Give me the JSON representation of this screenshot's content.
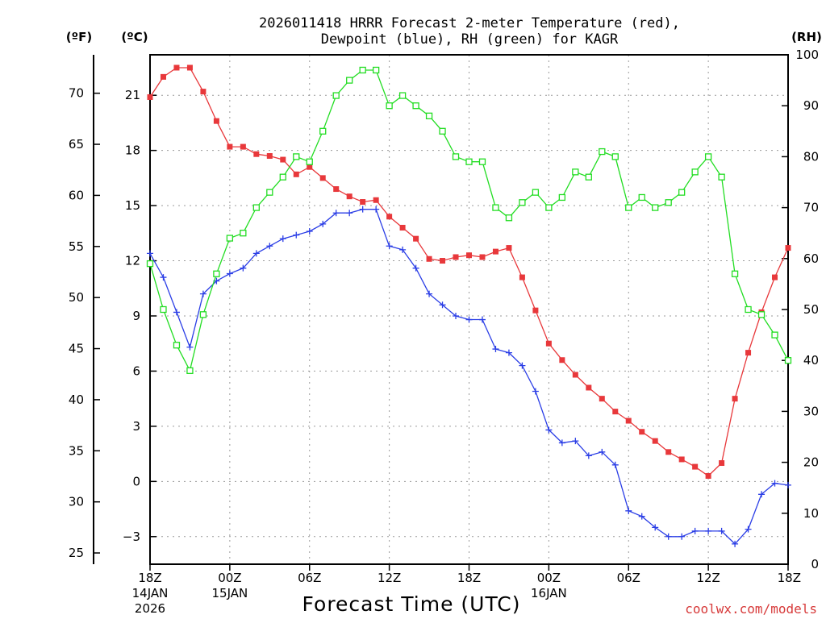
{
  "chart_data": {
    "type": "line",
    "title_line1": "2026011418 HRRR Forecast 2-meter Temperature (red),",
    "title_line2": "Dewpoint (blue), RH (green) for KAGR",
    "xlabel": "Forecast Time (UTC)",
    "credit": "coolwx.com/models",
    "units": {
      "left_f": "(ºF)",
      "left_c": "(ºC)",
      "right": "(RH)"
    },
    "x_range_hours": [
      0,
      48
    ],
    "celsius_range": [
      -4.5,
      23.2
    ],
    "rh_range": [
      0,
      100
    ],
    "ticks_f": [
      25,
      30,
      35,
      40,
      45,
      50,
      55,
      60,
      65,
      70
    ],
    "ticks_c": [
      -3,
      0,
      3,
      6,
      9,
      12,
      15,
      18,
      21
    ],
    "ticks_rh": [
      0,
      10,
      20,
      30,
      40,
      50,
      60,
      70,
      80,
      90,
      100
    ],
    "x_ticks": [
      {
        "hour": 0,
        "label": "18Z",
        "date1": "14JAN",
        "date2": "2026"
      },
      {
        "hour": 6,
        "label": "00Z",
        "date1": "15JAN",
        "date2": ""
      },
      {
        "hour": 12,
        "label": "06Z",
        "date1": "",
        "date2": ""
      },
      {
        "hour": 18,
        "label": "12Z",
        "date1": "",
        "date2": ""
      },
      {
        "hour": 24,
        "label": "18Z",
        "date1": "",
        "date2": ""
      },
      {
        "hour": 30,
        "label": "00Z",
        "date1": "16JAN",
        "date2": ""
      },
      {
        "hour": 36,
        "label": "06Z",
        "date1": "",
        "date2": ""
      },
      {
        "hour": 42,
        "label": "12Z",
        "date1": "",
        "date2": ""
      },
      {
        "hour": 48,
        "label": "18Z",
        "date1": "",
        "date2": ""
      }
    ],
    "series": [
      {
        "name": "2-meter Temperature",
        "unit": "C",
        "color": "#e8383b",
        "marker": "filled-square",
        "values": [
          20.9,
          22.0,
          22.5,
          22.5,
          21.2,
          19.6,
          18.2,
          18.2,
          17.8,
          17.7,
          17.5,
          16.7,
          17.1,
          16.5,
          15.9,
          15.5,
          15.2,
          15.3,
          14.4,
          13.8,
          13.2,
          12.1,
          12.0,
          12.2,
          12.3,
          12.2,
          12.5,
          12.7,
          11.1,
          9.3,
          7.5,
          6.6,
          5.8,
          5.1,
          4.5,
          3.8,
          3.3,
          2.7,
          2.2,
          1.6,
          1.2,
          0.8,
          0.3,
          1.0,
          4.5,
          7.0,
          9.2,
          11.1,
          12.7
        ]
      },
      {
        "name": "Dewpoint",
        "unit": "C",
        "color": "#2b3ee6",
        "marker": "plus",
        "values": [
          12.4,
          11.1,
          9.2,
          7.3,
          10.2,
          10.9,
          11.3,
          11.6,
          12.4,
          12.8,
          13.2,
          13.4,
          13.6,
          14.0,
          14.6,
          14.6,
          14.8,
          14.8,
          12.8,
          12.6,
          11.6,
          10.2,
          9.6,
          9.0,
          8.8,
          8.8,
          7.2,
          7.0,
          6.3,
          4.9,
          2.8,
          2.1,
          2.2,
          1.4,
          1.6,
          0.9,
          -1.6,
          -1.9,
          -2.5,
          -3.0,
          -3.0,
          -2.7,
          -2.7,
          -2.7,
          -3.4,
          -2.6,
          -0.7,
          -0.1,
          -0.2
        ]
      },
      {
        "name": "RH",
        "unit": "%",
        "color": "#22dd22",
        "marker": "open-square",
        "values": [
          59,
          50,
          43,
          38,
          49,
          57,
          64,
          65,
          70,
          73,
          76,
          80,
          79,
          85,
          92,
          95,
          97,
          97,
          90,
          92,
          90,
          88,
          85,
          80,
          79,
          79,
          70,
          68,
          71,
          73,
          70,
          72,
          77,
          76,
          81,
          80,
          70,
          72,
          70,
          71,
          73,
          77,
          80,
          76,
          57,
          50,
          49,
          45,
          40
        ]
      }
    ]
  }
}
